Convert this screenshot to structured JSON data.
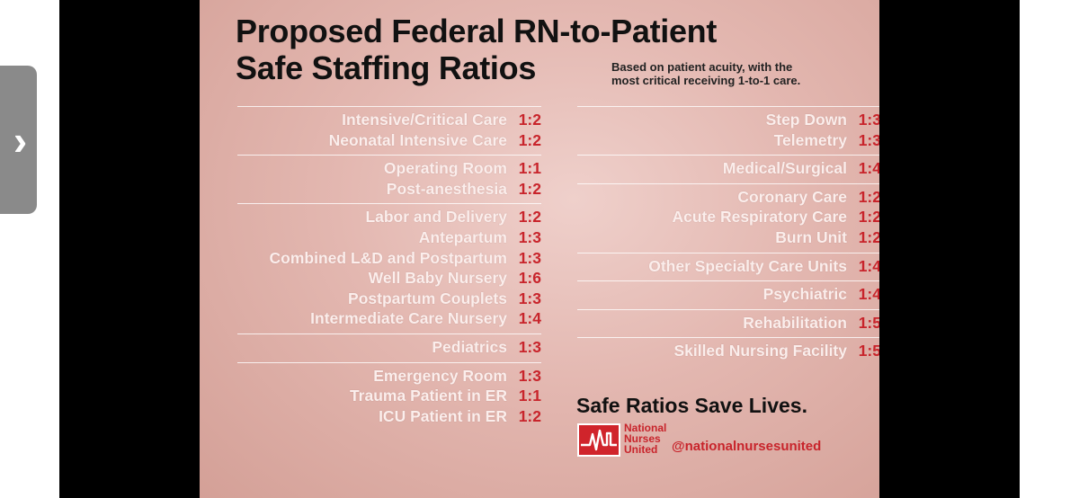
{
  "nav": {
    "prev_icon": "›"
  },
  "poster": {
    "title_line1": "Proposed Federal RN-to-Patient",
    "title_line2": "Safe Staffing Ratios",
    "subtitle_line1": "Based on patient acuity, with the",
    "subtitle_line2": "most critical receiving 1-to-1 care.",
    "left_groups": [
      [
        {
          "label": "Intensive/Critical Care",
          "ratio": "1:2"
        },
        {
          "label": "Neonatal Intensive Care",
          "ratio": "1:2"
        }
      ],
      [
        {
          "label": "Operating Room",
          "ratio": "1:1"
        },
        {
          "label": "Post-anesthesia",
          "ratio": "1:2"
        }
      ],
      [
        {
          "label": "Labor and Delivery",
          "ratio": "1:2"
        },
        {
          "label": "Antepartum",
          "ratio": "1:3"
        },
        {
          "label": "Combined L&D and Postpartum",
          "ratio": "1:3"
        },
        {
          "label": "Well Baby Nursery",
          "ratio": "1:6"
        },
        {
          "label": "Postpartum Couplets",
          "ratio": "1:3"
        },
        {
          "label": "Intermediate Care Nursery",
          "ratio": "1:4"
        }
      ],
      [
        {
          "label": "Pediatrics",
          "ratio": "1:3"
        }
      ],
      [
        {
          "label": "Emergency Room",
          "ratio": "1:3"
        },
        {
          "label": "Trauma Patient in ER",
          "ratio": "1:1"
        },
        {
          "label": "ICU Patient in ER",
          "ratio": "1:2"
        }
      ]
    ],
    "right_groups": [
      [
        {
          "label": "Step Down",
          "ratio": "1:3"
        },
        {
          "label": "Telemetry",
          "ratio": "1:3"
        }
      ],
      [
        {
          "label": "Medical/Surgical",
          "ratio": "1:4"
        }
      ],
      [
        {
          "label": "Coronary Care",
          "ratio": "1:2"
        },
        {
          "label": "Acute Respiratory Care",
          "ratio": "1:2"
        },
        {
          "label": "Burn Unit",
          "ratio": "1:2"
        }
      ],
      [
        {
          "label": "Other Specialty Care Units",
          "ratio": "1:4"
        }
      ],
      [
        {
          "label": "Psychiatric",
          "ratio": "1:4"
        }
      ],
      [
        {
          "label": "Rehabilitation",
          "ratio": "1:5"
        }
      ],
      [
        {
          "label": "Skilled Nursing Facility",
          "ratio": "1:5"
        }
      ]
    ],
    "slogan": "Safe Ratios Save Lives.",
    "org_line1": "National",
    "org_line2": "Nurses",
    "org_line3": "United",
    "handle": "@nationalnursesunited",
    "logo_icon": "nnu-heartbeat-logo",
    "accent_color": "#c8242b"
  }
}
